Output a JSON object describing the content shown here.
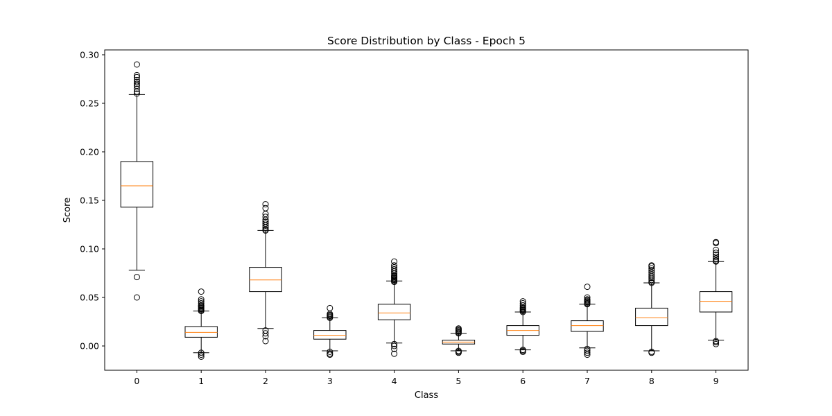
{
  "chart_data": {
    "type": "boxplot",
    "title": "Score Distribution by Class - Epoch 5",
    "xlabel": "Class",
    "ylabel": "Score",
    "categories": [
      "0",
      "1",
      "2",
      "3",
      "4",
      "5",
      "6",
      "7",
      "8",
      "9"
    ],
    "ylim": [
      -0.025,
      0.305
    ],
    "yticks": [
      0.0,
      0.05,
      0.1,
      0.15,
      0.2,
      0.25,
      0.3
    ],
    "ytick_labels": [
      "0.00",
      "0.05",
      "0.10",
      "0.15",
      "0.20",
      "0.25",
      "0.30"
    ],
    "grid": false,
    "colors": {
      "box": "#000000",
      "median": "#ff7f0e",
      "flier": "#000000"
    },
    "boxes": [
      {
        "label": "0",
        "whislo": 0.078,
        "q1": 0.143,
        "med": 0.165,
        "q3": 0.19,
        "whishi": 0.259,
        "fliers": [
          0.05,
          0.071,
          0.26,
          0.262,
          0.265,
          0.268,
          0.27,
          0.272,
          0.274,
          0.277,
          0.279,
          0.29
        ]
      },
      {
        "label": "1",
        "whislo": -0.007,
        "q1": 0.009,
        "med": 0.014,
        "q3": 0.02,
        "whishi": 0.036,
        "fliers": [
          -0.011,
          -0.009,
          -0.007,
          0.036,
          0.037,
          0.038,
          0.039,
          0.04,
          0.041,
          0.042,
          0.044,
          0.046,
          0.048,
          0.056
        ]
      },
      {
        "label": "2",
        "whislo": 0.018,
        "q1": 0.056,
        "med": 0.068,
        "q3": 0.081,
        "whishi": 0.119,
        "fliers": [
          0.005,
          0.01,
          0.013,
          0.016,
          0.119,
          0.12,
          0.122,
          0.124,
          0.126,
          0.128,
          0.13,
          0.133,
          0.136,
          0.142,
          0.146
        ]
      },
      {
        "label": "3",
        "whislo": -0.005,
        "q1": 0.007,
        "med": 0.011,
        "q3": 0.016,
        "whishi": 0.029,
        "fliers": [
          -0.009,
          -0.008,
          -0.006,
          0.029,
          0.03,
          0.031,
          0.032,
          0.033,
          0.039
        ]
      },
      {
        "label": "4",
        "whislo": 0.003,
        "q1": 0.027,
        "med": 0.034,
        "q3": 0.043,
        "whishi": 0.067,
        "fliers": [
          -0.008,
          -0.003,
          0.0,
          0.002,
          0.066,
          0.067,
          0.068,
          0.069,
          0.07,
          0.071,
          0.072,
          0.073,
          0.075,
          0.077,
          0.079,
          0.081,
          0.083,
          0.087
        ]
      },
      {
        "label": "5",
        "whislo": -0.005,
        "q1": 0.002,
        "med": 0.004,
        "q3": 0.006,
        "whishi": 0.013,
        "fliers": [
          -0.007,
          -0.006,
          -0.005,
          0.013,
          0.014,
          0.015,
          0.016,
          0.017,
          0.018
        ]
      },
      {
        "label": "6",
        "whislo": -0.004,
        "q1": 0.011,
        "med": 0.016,
        "q3": 0.021,
        "whishi": 0.035,
        "fliers": [
          -0.006,
          -0.005,
          -0.004,
          0.035,
          0.036,
          0.037,
          0.038,
          0.039,
          0.04,
          0.042,
          0.044,
          0.046
        ]
      },
      {
        "label": "7",
        "whislo": -0.002,
        "q1": 0.015,
        "med": 0.021,
        "q3": 0.026,
        "whishi": 0.043,
        "fliers": [
          -0.009,
          -0.007,
          -0.005,
          -0.003,
          0.043,
          0.044,
          0.045,
          0.046,
          0.047,
          0.048,
          0.05,
          0.061
        ]
      },
      {
        "label": "8",
        "whislo": -0.005,
        "q1": 0.021,
        "med": 0.029,
        "q3": 0.039,
        "whishi": 0.065,
        "fliers": [
          -0.007,
          -0.006,
          0.065,
          0.066,
          0.068,
          0.07,
          0.072,
          0.074,
          0.076,
          0.078,
          0.08,
          0.082,
          0.083
        ]
      },
      {
        "label": "9",
        "whislo": 0.006,
        "q1": 0.035,
        "med": 0.046,
        "q3": 0.056,
        "whishi": 0.087,
        "fliers": [
          0.002,
          0.004,
          0.005,
          0.087,
          0.088,
          0.09,
          0.092,
          0.094,
          0.096,
          0.099,
          0.106,
          0.107
        ]
      }
    ]
  }
}
